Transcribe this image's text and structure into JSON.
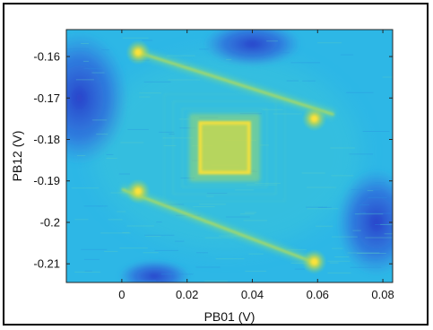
{
  "chart_data": {
    "type": "heatmap",
    "title": "",
    "xlabel": "PB01 (V)",
    "ylabel": "PB12 (V)",
    "xlim": [
      -0.017,
      0.083
    ],
    "ylim": [
      -0.2145,
      -0.1535
    ],
    "x_ticks": [
      0,
      0.02,
      0.04,
      0.06,
      0.08
    ],
    "x_tick_labels": [
      "0",
      "0.02",
      "0.04",
      "0.06",
      "0.08"
    ],
    "y_ticks": [
      -0.16,
      -0.17,
      -0.18,
      -0.19,
      -0.2,
      -0.21
    ],
    "y_tick_labels": [
      "-0.16",
      "-0.17",
      "-0.18",
      "-0.19",
      "-0.2",
      "-0.21"
    ],
    "colormap": "parula",
    "grid": false,
    "colorbar": false,
    "background_color": "#2db7e6",
    "features": {
      "vertical_lines_x": [
        0.005,
        0.059
      ],
      "diagonal_lines": [
        {
          "from": [
            0.005,
            -0.159
          ],
          "to": [
            0.065,
            -0.174
          ]
        },
        {
          "from": [
            0.0,
            -0.192
          ],
          "to": [
            0.06,
            -0.21
          ]
        }
      ],
      "hotspots": [
        {
          "x": 0.005,
          "y": -0.159
        },
        {
          "x": 0.005,
          "y": -0.1925
        },
        {
          "x": 0.059,
          "y": -0.175
        },
        {
          "x": 0.059,
          "y": -0.2095
        }
      ],
      "central_rectangle": {
        "x": [
          0.024,
          0.039
        ],
        "y": [
          -0.188,
          -0.176
        ]
      },
      "dark_regions": [
        {
          "x": -0.013,
          "y": -0.17
        },
        {
          "x": 0.078,
          "y": -0.2
        },
        {
          "x": 0.04,
          "y": -0.157
        },
        {
          "x": 0.01,
          "y": -0.213
        }
      ]
    }
  }
}
